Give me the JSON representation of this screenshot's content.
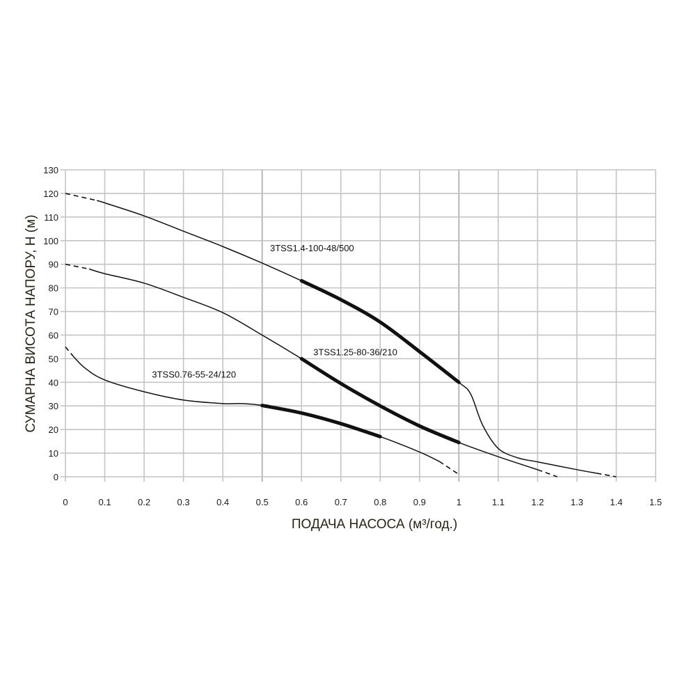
{
  "chart_data": {
    "type": "line",
    "title": "",
    "xlabel": "ПОДАЧА НАСОСА (м³/год.)",
    "ylabel": "СУМАРНА ВИСОТА НАПОРУ, Н (м)",
    "xlim": [
      0,
      1.5
    ],
    "ylim": [
      0,
      130
    ],
    "x_ticks": [
      "0",
      "0.1",
      "0.2",
      "0.3",
      "0.4",
      "0.5",
      "0.6",
      "0.7",
      "0.8",
      "0.9",
      "1",
      "1.1",
      "1.2",
      "1.3",
      "1.4",
      "1.5"
    ],
    "y_ticks": [
      "0",
      "10",
      "20",
      "30",
      "40",
      "50",
      "60",
      "70",
      "80",
      "90",
      "100",
      "110",
      "120",
      "130"
    ],
    "grid": true,
    "legend": "none (inline labels)",
    "series": [
      {
        "name": "3TSS1.4-100-48/500",
        "label_pos": [
          0.52,
          95.5
        ],
        "dashed_start": [
          [
            0,
            120
          ],
          [
            0.08,
            117
          ]
        ],
        "points": [
          [
            0.08,
            117
          ],
          [
            0.1,
            116
          ],
          [
            0.2,
            110.5
          ],
          [
            0.3,
            104
          ],
          [
            0.4,
            97.5
          ],
          [
            0.5,
            90.5
          ],
          [
            0.6,
            83
          ],
          [
            0.7,
            75
          ],
          [
            0.8,
            65.5
          ],
          [
            0.9,
            53
          ],
          [
            1.0,
            40
          ],
          [
            1.03,
            35
          ],
          [
            1.06,
            22
          ],
          [
            1.1,
            12
          ],
          [
            1.15,
            8
          ],
          [
            1.2,
            6.3
          ],
          [
            1.3,
            3
          ],
          [
            1.35,
            1.5
          ]
        ],
        "bold_range": [
          0.6,
          1.0
        ],
        "dashed_end": [
          [
            1.35,
            1.5
          ],
          [
            1.4,
            0
          ]
        ]
      },
      {
        "name": "3TSS1.25-80-36/210",
        "label_pos": [
          0.63,
          51.5
        ],
        "dashed_start": [
          [
            0,
            90
          ],
          [
            0.06,
            88
          ]
        ],
        "points": [
          [
            0.06,
            88
          ],
          [
            0.1,
            86
          ],
          [
            0.2,
            82
          ],
          [
            0.3,
            76
          ],
          [
            0.4,
            69.5
          ],
          [
            0.5,
            60
          ],
          [
            0.6,
            50
          ],
          [
            0.7,
            39.5
          ],
          [
            0.8,
            30
          ],
          [
            0.9,
            21.5
          ],
          [
            1.0,
            14.5
          ],
          [
            1.1,
            8.5
          ],
          [
            1.2,
            3
          ]
        ],
        "bold_range": [
          0.6,
          1.0
        ],
        "dashed_end": [
          [
            1.2,
            3
          ],
          [
            1.25,
            0
          ]
        ]
      },
      {
        "name": "3TSS0.76-55-24/120",
        "label_pos": [
          0.22,
          42
        ],
        "dashed_start": [
          [
            0,
            55
          ],
          [
            0.02,
            51
          ]
        ],
        "points": [
          [
            0.02,
            51
          ],
          [
            0.05,
            46
          ],
          [
            0.1,
            41
          ],
          [
            0.2,
            36
          ],
          [
            0.3,
            32.5
          ],
          [
            0.4,
            31
          ],
          [
            0.45,
            31
          ],
          [
            0.5,
            30.2
          ],
          [
            0.6,
            27
          ],
          [
            0.7,
            22.5
          ],
          [
            0.8,
            17
          ],
          [
            0.9,
            10.5
          ],
          [
            0.95,
            6.5
          ]
        ],
        "bold_range": [
          0.5,
          0.8
        ],
        "dashed_end": [
          [
            0.95,
            6.5
          ],
          [
            1.0,
            1
          ]
        ]
      }
    ]
  }
}
